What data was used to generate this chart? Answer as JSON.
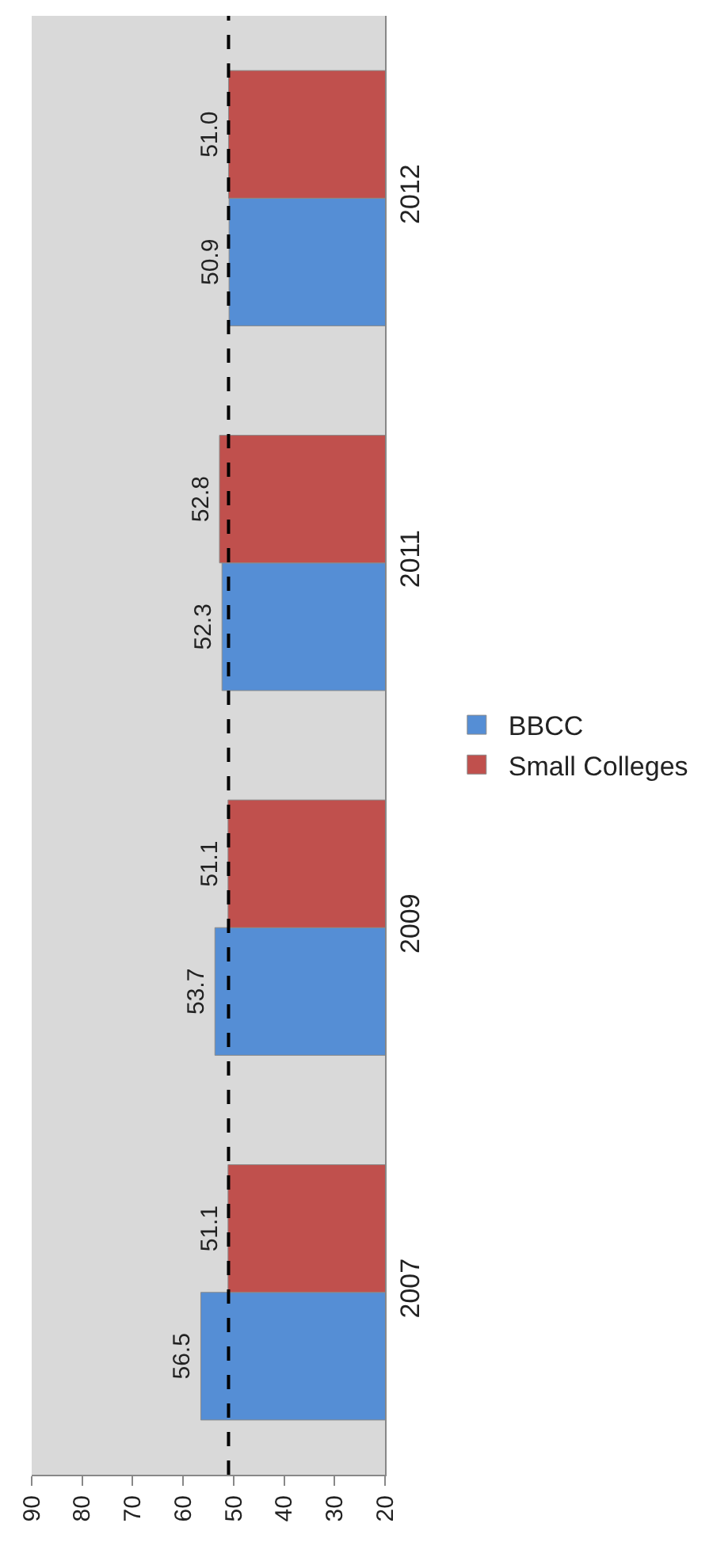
{
  "chart_data": {
    "type": "bar",
    "orientation": "horizontal",
    "categories": [
      "2012",
      "2011",
      "2009",
      "2007"
    ],
    "series": [
      {
        "name": "BBCC",
        "color": "#558ed5",
        "values": [
          50.9,
          52.3,
          53.7,
          56.5
        ],
        "value_labels": [
          "50.9",
          "52.3",
          "53.7",
          "56.5"
        ]
      },
      {
        "name": "Small Colleges",
        "color": "#c0504d",
        "values": [
          51.0,
          52.8,
          51.1,
          51.1
        ],
        "value_labels": [
          "51.0",
          "52.8",
          "51.1",
          "51.1"
        ]
      }
    ],
    "xlim": [
      90,
      20
    ],
    "xticks": [
      90,
      80,
      70,
      60,
      50,
      40,
      30,
      20
    ],
    "ref_lines": [
      {
        "axis": "x",
        "value": 51,
        "line_style": "dashed",
        "color": "#000000"
      }
    ],
    "grid": false,
    "legend": "right"
  }
}
